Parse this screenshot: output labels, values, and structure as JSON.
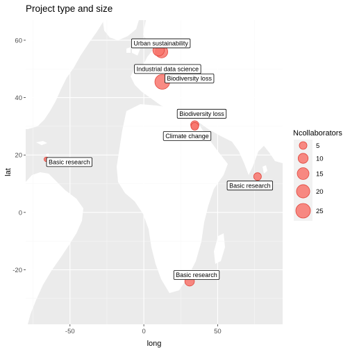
{
  "chart_data": {
    "type": "scatter",
    "title": "Project type and size",
    "xlabel": "long",
    "ylabel": "lat",
    "xlim": [
      -80,
      94
    ],
    "ylim": [
      -39,
      67
    ],
    "x_ticks": [
      -50,
      0,
      50
    ],
    "y_ticks": [
      -20,
      0,
      20,
      40,
      60
    ],
    "grid": true,
    "point_color": "#f8766d",
    "panel_color": "#ebebeb",
    "land_color": "#ffffff",
    "legend": {
      "title": "Ncollaborators",
      "placement": "right",
      "sizes": [
        5,
        10,
        15,
        20,
        25
      ]
    },
    "points": [
      {
        "label": "Urban sustainability",
        "long": 12,
        "lat": 56,
        "size": 17
      },
      {
        "label": "Industrial data science",
        "long": 10,
        "lat": 56.5,
        "size": 14
      },
      {
        "label": "Biodiversity loss",
        "long": 12.5,
        "lat": 45.5,
        "size": 26
      },
      {
        "label": "Biodiversity loss",
        "long": 34.5,
        "lat": 30.5,
        "size": 6
      },
      {
        "label": "Climate change",
        "long": 34.5,
        "lat": 30,
        "size": 5
      },
      {
        "label": "Basic research",
        "long": -66,
        "lat": 18.5,
        "size": 1
      },
      {
        "label": "Basic research",
        "long": 77,
        "lat": 12.5,
        "size": 5
      },
      {
        "label": "Basic research",
        "long": 31,
        "lat": -24,
        "size": 9
      }
    ]
  }
}
